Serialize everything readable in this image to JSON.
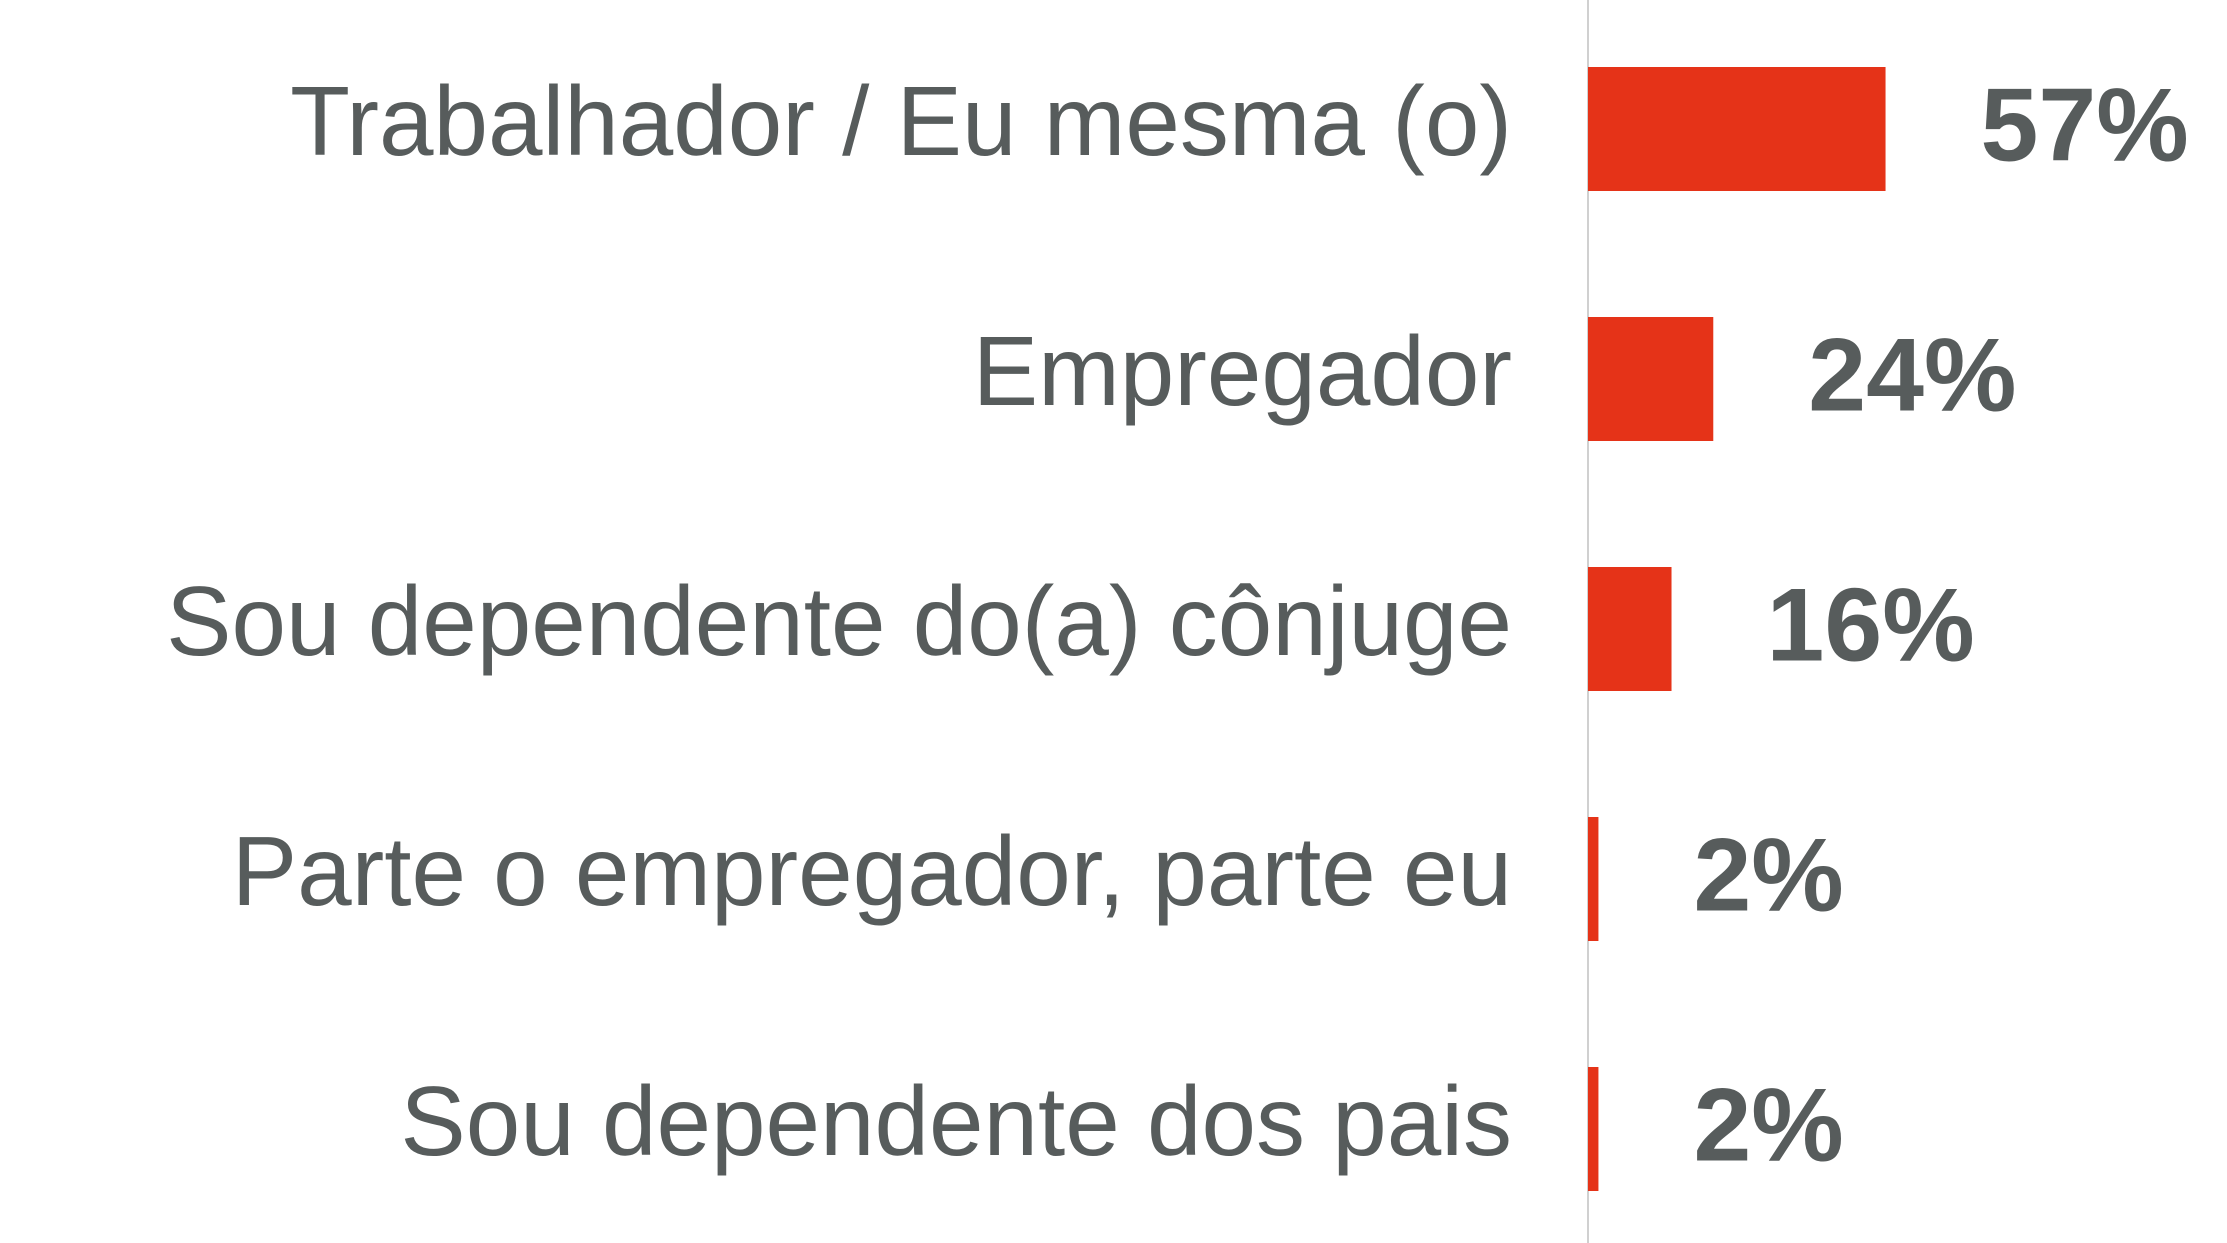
{
  "chart_data": {
    "type": "bar",
    "orientation": "horizontal",
    "categories": [
      "Trabalhador / Eu mesma (o)",
      "Empregador",
      "Sou dependente do(a) cônjuge",
      "Parte o empregador, parte eu",
      "Sou dependente dos pais"
    ],
    "values": [
      57,
      24,
      16,
      2,
      2
    ],
    "value_labels": [
      "57%",
      "24%",
      "16%",
      "2%",
      "2%"
    ],
    "color": "#e53318"
  }
}
